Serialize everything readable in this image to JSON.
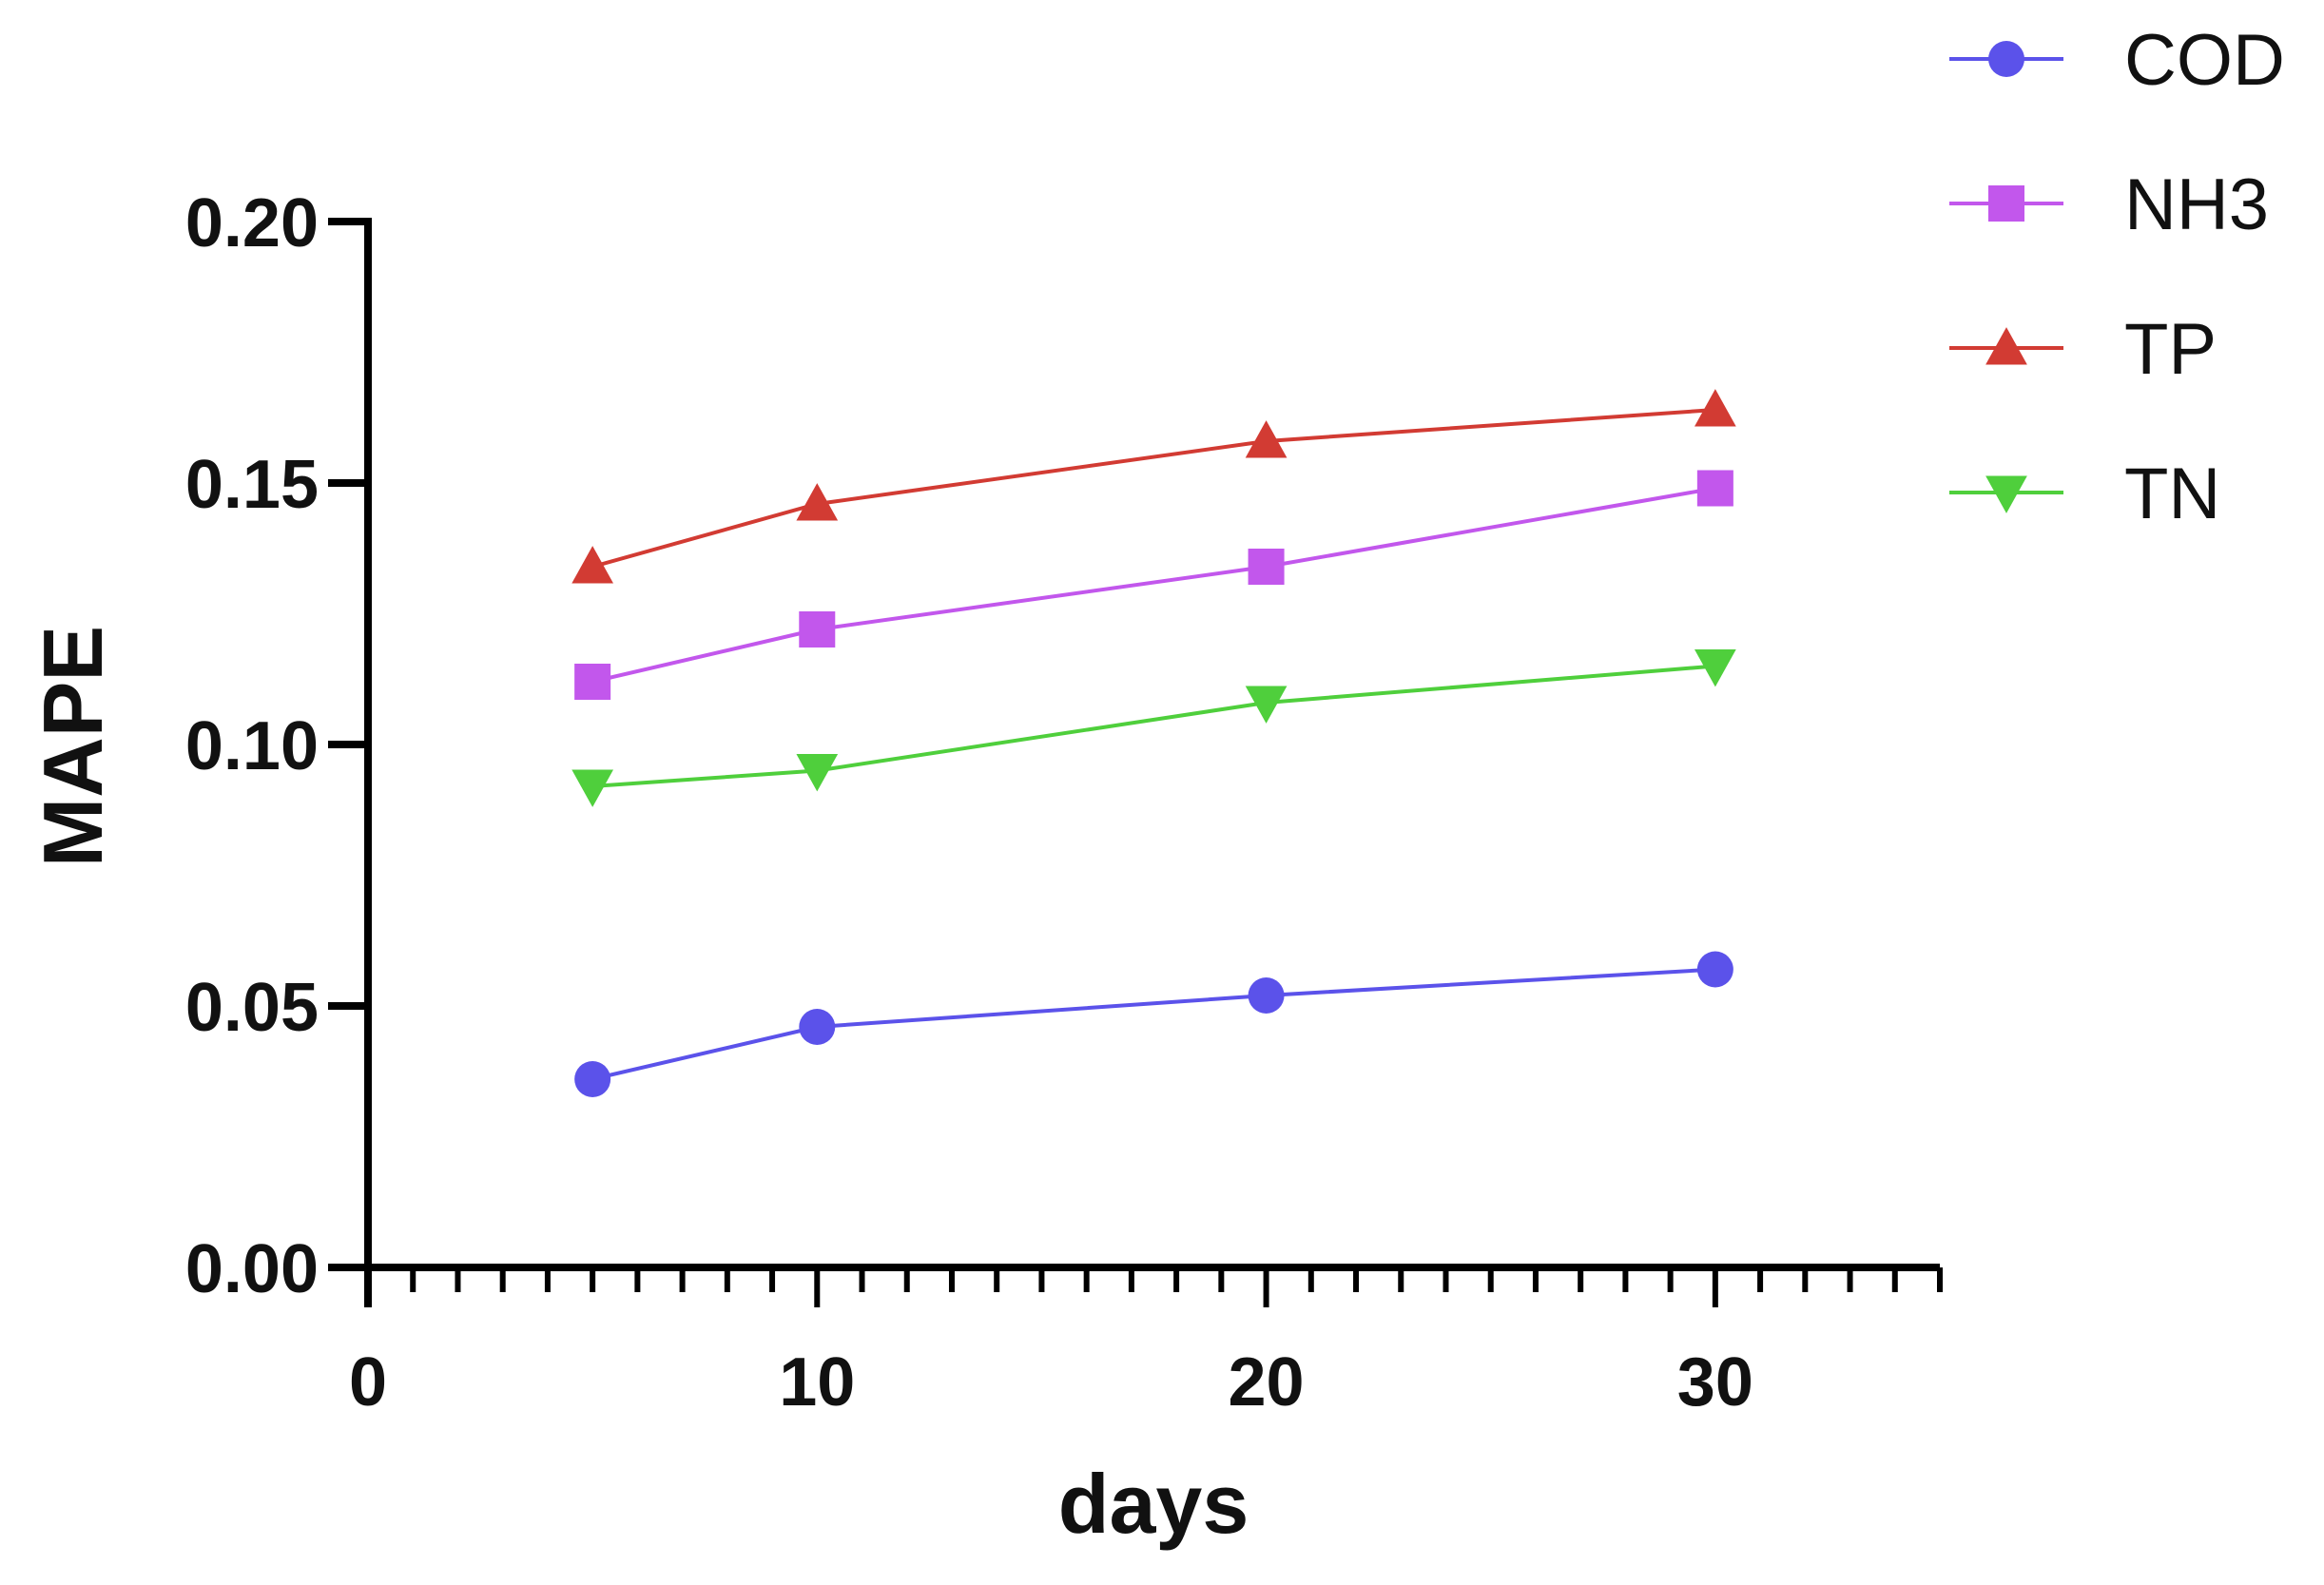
{
  "chart_data": {
    "type": "line",
    "title": "",
    "xlabel": "days",
    "ylabel": "MAPE",
    "x": [
      5,
      10,
      20,
      30
    ],
    "xlim": [
      0,
      35
    ],
    "ylim": [
      0,
      0.2
    ],
    "xticks": [
      "0",
      "10",
      "20",
      "30"
    ],
    "xtick_values": [
      0,
      10,
      20,
      30
    ],
    "yticks": [
      "0.00",
      "0.05",
      "0.10",
      "0.15",
      "0.20"
    ],
    "ytick_values": [
      0,
      0.05,
      0.1,
      0.15,
      0.2
    ],
    "grid": false,
    "legend_position": "top-right",
    "series": [
      {
        "name": "COD",
        "marker": "circle",
        "color": "#5b52ea",
        "values": [
          0.036,
          0.046,
          0.052,
          0.057
        ]
      },
      {
        "name": "NH3",
        "marker": "square",
        "color": "#c257ec",
        "values": [
          0.112,
          0.122,
          0.134,
          0.149
        ]
      },
      {
        "name": "TP",
        "marker": "triangle-up",
        "color": "#d23b33",
        "values": [
          0.134,
          0.146,
          0.158,
          0.164
        ]
      },
      {
        "name": "TN",
        "marker": "triangle-down",
        "color": "#4fcf3c",
        "values": [
          0.092,
          0.095,
          0.108,
          0.115
        ]
      }
    ]
  }
}
